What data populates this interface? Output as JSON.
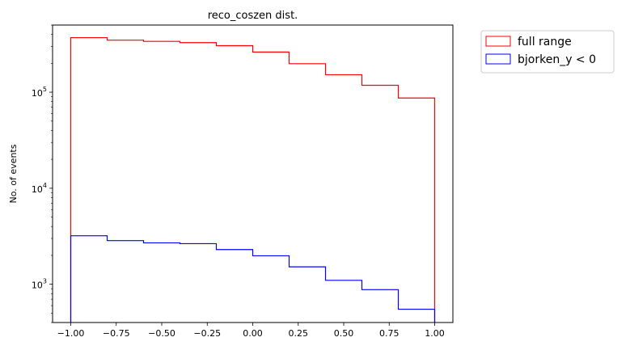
{
  "chart_data": {
    "type": "histogram",
    "title": "reco_coszen dist.",
    "xlabel": "",
    "ylabel": "No. of events",
    "xlim": [
      -1.1,
      1.1
    ],
    "ylim": [
      400,
      500000
    ],
    "yscale": "log",
    "x_ticks": [
      -1.0,
      -0.75,
      -0.5,
      -0.25,
      0.0,
      0.25,
      0.5,
      0.75,
      1.0
    ],
    "x_tick_labels": [
      "−1.00",
      "−0.75",
      "−0.50",
      "−0.25",
      "0.00",
      "0.25",
      "0.50",
      "0.75",
      "1.00"
    ],
    "y_ticks": [
      1000,
      10000,
      100000
    ],
    "y_tick_labels": [
      "10",
      "10",
      "10"
    ],
    "y_tick_exponents": [
      "3",
      "4",
      "5"
    ],
    "bin_edges": [
      -1.0,
      -0.8,
      -0.6,
      -0.4,
      -0.2,
      0.0,
      0.2,
      0.4,
      0.6,
      0.8,
      1.0
    ],
    "series": [
      {
        "name": "full range",
        "color": "#ff0000",
        "values": [
          370000,
          348000,
          338000,
          328000,
          305000,
          262000,
          198000,
          152000,
          118000,
          87000
        ]
      },
      {
        "name": "bjorken_y < 0",
        "color": "#0000ff",
        "values": [
          3200,
          2850,
          2700,
          2650,
          2300,
          1980,
          1520,
          1100,
          880,
          550
        ]
      }
    ],
    "legend_position": "outside-top-right",
    "grid": false
  }
}
